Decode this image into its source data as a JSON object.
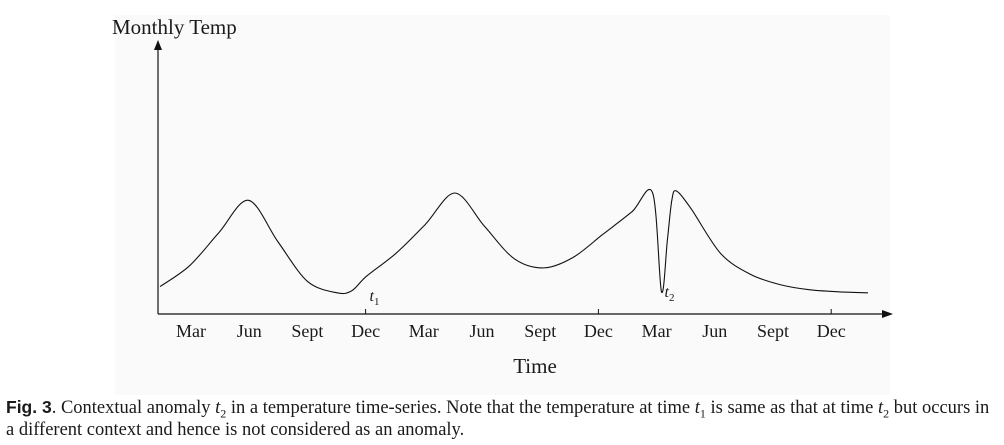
{
  "chart_data": {
    "type": "line",
    "ylabel": "Monthly Temp",
    "xlabel": "Time",
    "x_ticks": [
      "Mar",
      "Jun",
      "Sept",
      "Dec",
      "Mar",
      "Jun",
      "Sept",
      "Dec",
      "Mar",
      "Jun",
      "Sept",
      "Dec"
    ],
    "series": [
      {
        "x": [
          0,
          1,
          2,
          3,
          4,
          5,
          6,
          6.5,
          7,
          8,
          9,
          10,
          11,
          12,
          13,
          14,
          15,
          16,
          16.7,
          17,
          17.2,
          17.35,
          17.5,
          18,
          19,
          20,
          21,
          22,
          23,
          24
        ],
        "values": [
          0.1,
          0.3,
          0.62,
          0.93,
          0.53,
          0.15,
          0.04,
          0.06,
          0.2,
          0.42,
          0.7,
          1.0,
          0.68,
          0.37,
          0.28,
          0.38,
          0.6,
          0.82,
          1.0,
          0.05,
          0.55,
          0.93,
          1.02,
          0.85,
          0.42,
          0.22,
          0.12,
          0.07,
          0.05,
          0.04
        ]
      }
    ],
    "annotations": [
      {
        "label": "t",
        "subscript": "1",
        "x": 7
      },
      {
        "label": "t",
        "subscript": "2",
        "x": 17
      }
    ]
  },
  "caption": {
    "label": "Fig. 3",
    "t2_var": "t",
    "t2_sub": "2",
    "t1_var": "t",
    "t1_sub": "1",
    "text_1": ".   Contextual anomaly ",
    "text_2": " in a temperature time-series. Note that the temperature at time ",
    "text_3": " is same as that at time ",
    "text_4": " but occurs in a different context and hence is not considered as an anomaly."
  }
}
